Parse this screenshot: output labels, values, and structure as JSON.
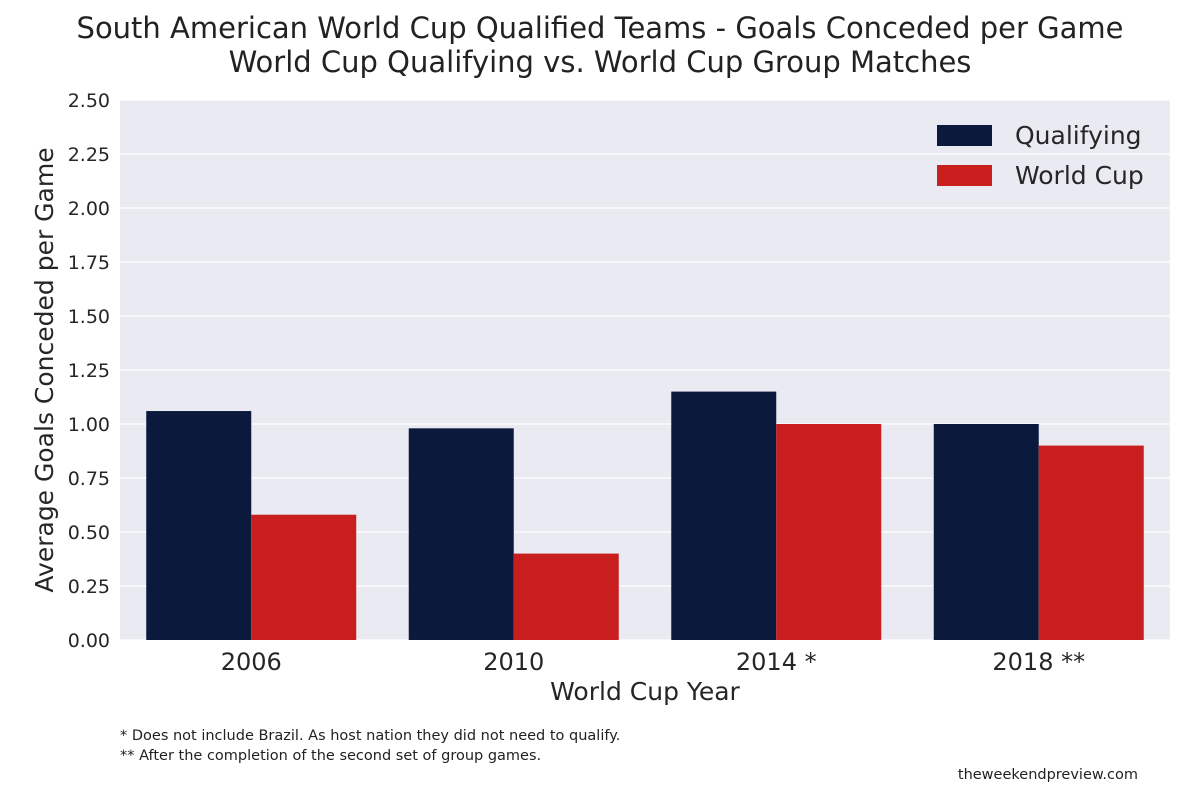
{
  "chart_data": {
    "type": "bar",
    "title": "South American World Cup Qualified Teams - Goals Conceded per Game",
    "subtitle": "World Cup Qualifying vs. World Cup Group Matches",
    "xlabel": "World Cup Year",
    "ylabel": "Average Goals Conceded per Game",
    "categories": [
      "2006",
      "2010",
      "2014 *",
      "2018 **"
    ],
    "series": [
      {
        "name": "Qualifying",
        "color": "#0b1a3c",
        "values": [
          1.06,
          0.98,
          1.15,
          1.0
        ]
      },
      {
        "name": "World Cup",
        "color": "#c81e1e",
        "values": [
          0.58,
          0.4,
          1.0,
          0.9
        ]
      }
    ],
    "ylim": [
      0,
      2.5
    ],
    "yticks": [
      "0.00",
      "0.25",
      "0.50",
      "0.75",
      "1.00",
      "1.25",
      "1.50",
      "1.75",
      "2.00",
      "2.25",
      "2.50"
    ],
    "grid": true,
    "legend_position": "top-right",
    "plot_background": "#eaeaf2"
  },
  "footnotes": [
    "* Does not include Brazil. As host nation they did not need to qualify.",
    "** After the completion of the second set of group games."
  ],
  "credit": "theweekendpreview.com"
}
